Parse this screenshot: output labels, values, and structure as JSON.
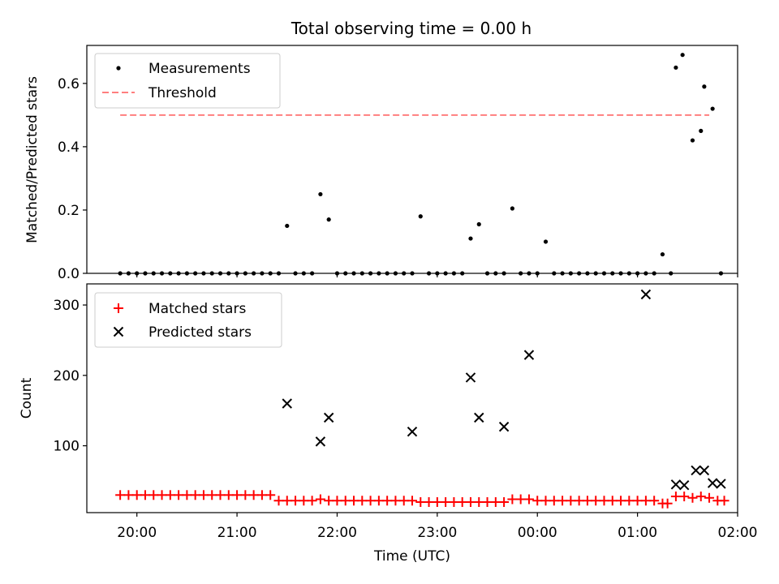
{
  "title": "Total observing time = 0.00 h",
  "chart_data": [
    {
      "type": "scatter",
      "ylabel": "Matched/Predicted stars",
      "xlim": [
        "19:30",
        "02:00"
      ],
      "ylim": [
        0,
        0.72
      ],
      "yticks": [
        0.0,
        0.2,
        0.4,
        0.6
      ],
      "ytick_labels": [
        "0.0",
        "0.2",
        "0.4",
        "0.6"
      ],
      "legend_position": "top-left",
      "threshold": {
        "name": "Threshold",
        "value": 0.5,
        "x_start": "19:50",
        "x_end": "01:43",
        "color": "#ff7f7f"
      },
      "series": [
        {
          "name": "Measurements",
          "color": "#000000",
          "points": [
            [
              "19:50",
              0
            ],
            [
              "19:55",
              0
            ],
            [
              "20:00",
              0
            ],
            [
              "20:05",
              0
            ],
            [
              "20:10",
              0
            ],
            [
              "20:15",
              0
            ],
            [
              "20:20",
              0
            ],
            [
              "20:25",
              0
            ],
            [
              "20:30",
              0
            ],
            [
              "20:35",
              0
            ],
            [
              "20:40",
              0
            ],
            [
              "20:45",
              0
            ],
            [
              "20:50",
              0
            ],
            [
              "20:55",
              0
            ],
            [
              "21:00",
              0
            ],
            [
              "21:05",
              0
            ],
            [
              "21:10",
              0
            ],
            [
              "21:15",
              0
            ],
            [
              "21:20",
              0
            ],
            [
              "21:25",
              0
            ],
            [
              "21:30",
              0.15
            ],
            [
              "21:35",
              0
            ],
            [
              "21:40",
              0
            ],
            [
              "21:45",
              0
            ],
            [
              "21:50",
              0.25
            ],
            [
              "21:55",
              0.17
            ],
            [
              "22:00",
              0
            ],
            [
              "22:05",
              0
            ],
            [
              "22:10",
              0
            ],
            [
              "22:15",
              0
            ],
            [
              "22:20",
              0
            ],
            [
              "22:25",
              0
            ],
            [
              "22:30",
              0
            ],
            [
              "22:35",
              0
            ],
            [
              "22:40",
              0
            ],
            [
              "22:45",
              0
            ],
            [
              "22:50",
              0.18
            ],
            [
              "22:55",
              0
            ],
            [
              "23:00",
              0
            ],
            [
              "23:05",
              0
            ],
            [
              "23:10",
              0
            ],
            [
              "23:15",
              0
            ],
            [
              "23:20",
              0.11
            ],
            [
              "23:25",
              0.155
            ],
            [
              "23:30",
              0
            ],
            [
              "23:35",
              0
            ],
            [
              "23:40",
              0
            ],
            [
              "23:45",
              0.205
            ],
            [
              "23:50",
              0
            ],
            [
              "23:55",
              0
            ],
            [
              "00:00",
              0
            ],
            [
              "00:05",
              0.1
            ],
            [
              "00:10",
              0
            ],
            [
              "00:15",
              0
            ],
            [
              "00:20",
              0
            ],
            [
              "00:25",
              0
            ],
            [
              "00:30",
              0
            ],
            [
              "00:35",
              0
            ],
            [
              "00:40",
              0
            ],
            [
              "00:45",
              0
            ],
            [
              "00:50",
              0
            ],
            [
              "00:55",
              0
            ],
            [
              "01:00",
              0
            ],
            [
              "01:05",
              0
            ],
            [
              "01:10",
              0
            ],
            [
              "01:15",
              0.06
            ],
            [
              "01:20",
              0
            ],
            [
              "01:23",
              0.65
            ],
            [
              "01:27",
              0.69
            ],
            [
              "01:33",
              0.42
            ],
            [
              "01:38",
              0.45
            ],
            [
              "01:40",
              0.59
            ],
            [
              "01:45",
              0.52
            ],
            [
              "01:50",
              0
            ]
          ]
        }
      ]
    },
    {
      "type": "scatter",
      "xlabel": "Time (UTC)",
      "ylabel": "Count",
      "xlim": [
        "19:30",
        "02:00"
      ],
      "xticks": [
        "20:00",
        "21:00",
        "22:00",
        "23:00",
        "00:00",
        "01:00",
        "02:00"
      ],
      "ylim": [
        5,
        330
      ],
      "yticks": [
        100,
        200,
        300
      ],
      "legend_position": "top-left",
      "series": [
        {
          "name": "Matched stars",
          "marker": "plus",
          "color": "#ff0000",
          "points": [
            [
              "19:50",
              30
            ],
            [
              "19:55",
              30
            ],
            [
              "20:00",
              30
            ],
            [
              "20:05",
              30
            ],
            [
              "20:10",
              30
            ],
            [
              "20:15",
              30
            ],
            [
              "20:20",
              30
            ],
            [
              "20:25",
              30
            ],
            [
              "20:30",
              30
            ],
            [
              "20:35",
              30
            ],
            [
              "20:40",
              30
            ],
            [
              "20:45",
              30
            ],
            [
              "20:50",
              30
            ],
            [
              "20:55",
              30
            ],
            [
              "21:00",
              30
            ],
            [
              "21:05",
              30
            ],
            [
              "21:10",
              30
            ],
            [
              "21:15",
              30
            ],
            [
              "21:20",
              30
            ],
            [
              "21:25",
              22
            ],
            [
              "21:30",
              22
            ],
            [
              "21:35",
              22
            ],
            [
              "21:40",
              22
            ],
            [
              "21:45",
              22
            ],
            [
              "21:50",
              24
            ],
            [
              "21:55",
              22
            ],
            [
              "22:00",
              22
            ],
            [
              "22:05",
              22
            ],
            [
              "22:10",
              22
            ],
            [
              "22:15",
              22
            ],
            [
              "22:20",
              22
            ],
            [
              "22:25",
              22
            ],
            [
              "22:30",
              22
            ],
            [
              "22:35",
              22
            ],
            [
              "22:40",
              22
            ],
            [
              "22:45",
              22
            ],
            [
              "22:50",
              20
            ],
            [
              "22:55",
              20
            ],
            [
              "23:00",
              20
            ],
            [
              "23:05",
              20
            ],
            [
              "23:10",
              20
            ],
            [
              "23:15",
              20
            ],
            [
              "23:20",
              20
            ],
            [
              "23:25",
              20
            ],
            [
              "23:30",
              20
            ],
            [
              "23:35",
              20
            ],
            [
              "23:40",
              20
            ],
            [
              "23:45",
              24
            ],
            [
              "23:50",
              24
            ],
            [
              "23:55",
              24
            ],
            [
              "00:00",
              22
            ],
            [
              "00:05",
              22
            ],
            [
              "00:10",
              22
            ],
            [
              "00:15",
              22
            ],
            [
              "00:20",
              22
            ],
            [
              "00:25",
              22
            ],
            [
              "00:30",
              22
            ],
            [
              "00:35",
              22
            ],
            [
              "00:40",
              22
            ],
            [
              "00:45",
              22
            ],
            [
              "00:50",
              22
            ],
            [
              "00:55",
              22
            ],
            [
              "01:00",
              22
            ],
            [
              "01:05",
              22
            ],
            [
              "01:10",
              22
            ],
            [
              "01:15",
              18
            ],
            [
              "01:18",
              18
            ],
            [
              "01:23",
              28
            ],
            [
              "01:28",
              28
            ],
            [
              "01:33",
              26
            ],
            [
              "01:38",
              28
            ],
            [
              "01:43",
              26
            ],
            [
              "01:48",
              22
            ],
            [
              "01:52",
              22
            ]
          ]
        },
        {
          "name": "Predicted stars",
          "marker": "x",
          "color": "#000000",
          "points": [
            [
              "21:30",
              160
            ],
            [
              "21:50",
              106
            ],
            [
              "21:55",
              140
            ],
            [
              "22:45",
              120
            ],
            [
              "23:20",
              197
            ],
            [
              "23:25",
              140
            ],
            [
              "23:40",
              127
            ],
            [
              "23:55",
              229
            ],
            [
              "01:05",
              315
            ],
            [
              "01:23",
              45
            ],
            [
              "01:28",
              44
            ],
            [
              "01:35",
              65
            ],
            [
              "01:40",
              65
            ],
            [
              "01:45",
              47
            ],
            [
              "01:50",
              46
            ]
          ]
        }
      ]
    }
  ]
}
